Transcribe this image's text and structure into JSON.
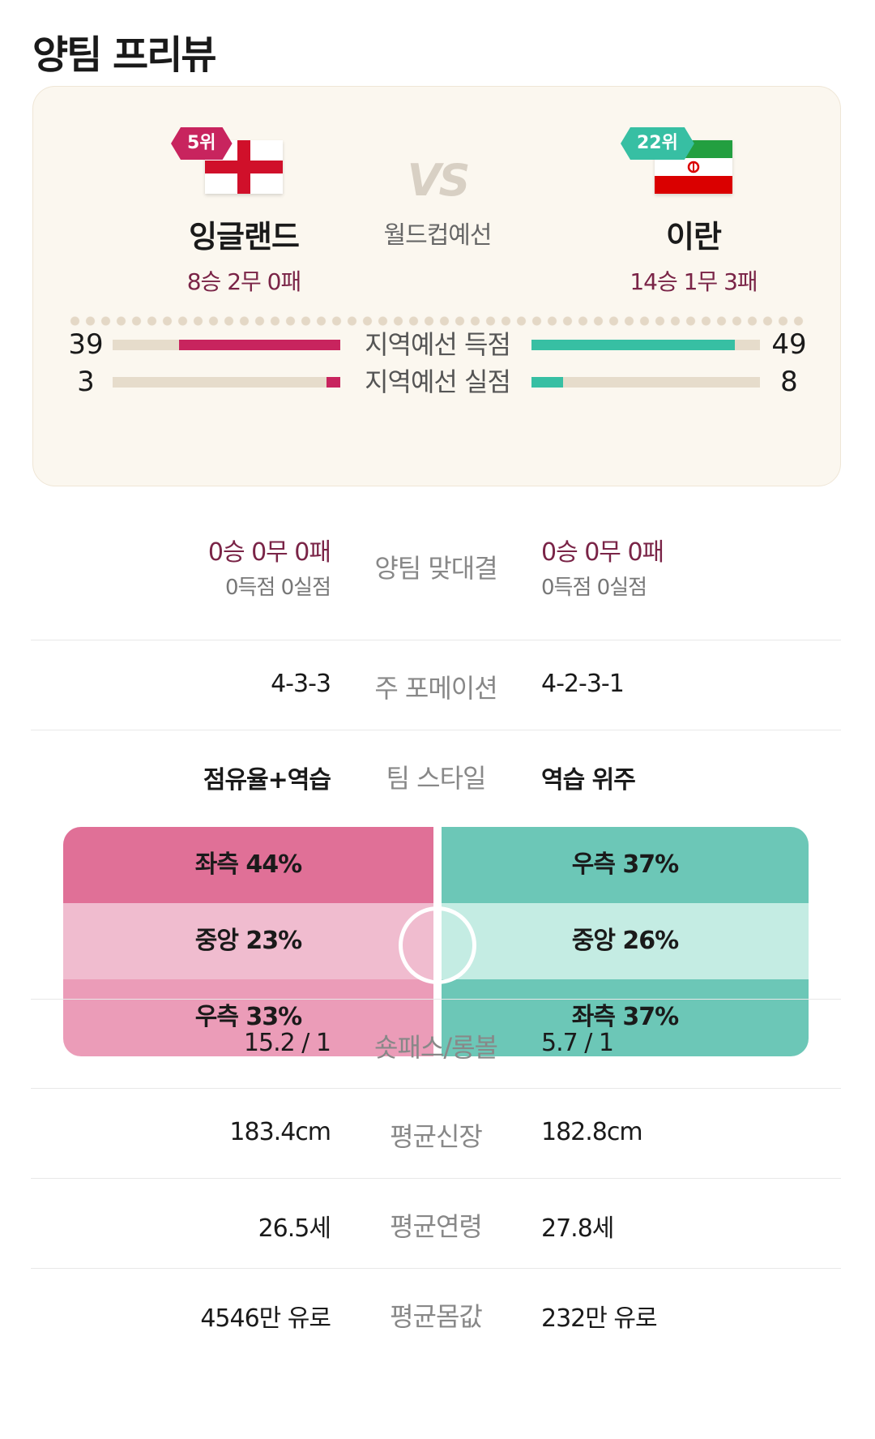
{
  "page_title": "양팀 프리뷰",
  "match": {
    "vs_text": "VS",
    "competition": "월드컵예선",
    "home": {
      "rank": "5위",
      "name": "잉글랜드",
      "record": "8승 2무 0패",
      "flag_icon": "england-flag-icon",
      "color": "#c8245e"
    },
    "away": {
      "rank": "22위",
      "name": "이란",
      "record": "14승 1무 3패",
      "flag_icon": "iran-flag-icon",
      "color": "#37bfa3"
    }
  },
  "qualifier_stats": [
    {
      "label": "지역예선 득점",
      "home": "39",
      "away": "49",
      "home_bar_fraction": 0.71,
      "away_bar_fraction": 0.89
    },
    {
      "label": "지역예선 실점",
      "home": "3",
      "away": "8",
      "home_bar_fraction": 0.06,
      "away_bar_fraction": 0.14
    }
  ],
  "head_to_head": {
    "label": "양팀 맞대결",
    "home_record": "0승 0무 0패",
    "home_goals": "0득점 0실점",
    "away_record": "0승 0무 0패",
    "away_goals": "0득점 0실점"
  },
  "formation": {
    "label": "주 포메이션",
    "home": "4-3-3",
    "away": "4-2-3-1"
  },
  "style": {
    "label": "팀 스타일",
    "home": "점유율+역습",
    "away": "역습 위주"
  },
  "attack_zones": {
    "home": [
      {
        "text": "좌측 44%",
        "color": "#e07097"
      },
      {
        "text": "중앙 23%",
        "color": "#f0bccf"
      },
      {
        "text": "우측 33%",
        "color": "#eb9cb8"
      }
    ],
    "away": [
      {
        "text": "우측 37%",
        "color": "#6cc7b7"
      },
      {
        "text": "중앙 26%",
        "color": "#c4ece3"
      },
      {
        "text": "좌측 37%",
        "color": "#6cc7b7"
      }
    ]
  },
  "rows": [
    {
      "name": "short-long-pass",
      "label": "숏패스/롱볼",
      "home": "15.2 / 1",
      "away": "5.7 / 1"
    },
    {
      "name": "avg-height",
      "label": "평균신장",
      "home": "183.4cm",
      "away": "182.8cm"
    },
    {
      "name": "avg-age",
      "label": "평균연령",
      "home": "26.5세",
      "away": "27.8세"
    },
    {
      "name": "avg-value",
      "label": "평균몸값",
      "home": "4546만 유로",
      "away": "232만 유로"
    }
  ]
}
